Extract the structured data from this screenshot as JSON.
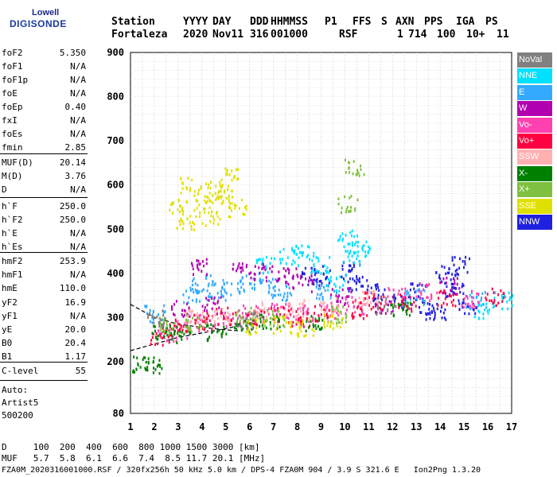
{
  "logo": {
    "line1": "Lowell",
    "line2": "DIGISONDE"
  },
  "header": {
    "labels": [
      "Station",
      "YYYY",
      "DAY",
      "DDD",
      "HHMMSS",
      "P1",
      "FFS",
      "S",
      "AXN",
      "PPS",
      "IGA",
      "PS"
    ],
    "values": [
      "Fortaleza",
      "2020",
      "Nov11",
      "316",
      "001000",
      "RSF",
      "",
      "1",
      "714",
      "100",
      "10+",
      "11"
    ]
  },
  "params_group1": [
    {
      "label": "foF2",
      "value": "5.350"
    },
    {
      "label": "foF1",
      "value": "N/A"
    },
    {
      "label": "foF1p",
      "value": "N/A"
    },
    {
      "label": "foE",
      "value": "N/A"
    },
    {
      "label": "foEp",
      "value": "0.40"
    },
    {
      "label": "fxI",
      "value": "N/A"
    },
    {
      "label": "foEs",
      "value": "N/A"
    },
    {
      "label": "fmin",
      "value": "2.85"
    }
  ],
  "params_group2": [
    {
      "label": "MUF(D)",
      "value": "20.14"
    },
    {
      "label": "M(D)",
      "value": "3.76"
    },
    {
      "label": "D",
      "value": "N/A"
    }
  ],
  "params_group3": [
    {
      "label": "h`F",
      "value": "250.0"
    },
    {
      "label": "h`F2",
      "value": "250.0"
    },
    {
      "label": "h`E",
      "value": "N/A"
    },
    {
      "label": "h`Es",
      "value": "N/A"
    }
  ],
  "params_group4": [
    {
      "label": "hmF2",
      "value": "253.9"
    },
    {
      "label": "hmF1",
      "value": "N/A"
    },
    {
      "label": "hmE",
      "value": "110.0"
    },
    {
      "label": "yF2",
      "value": "16.9"
    },
    {
      "label": "yF1",
      "value": "N/A"
    },
    {
      "label": "yE",
      "value": "20.0"
    },
    {
      "label": "B0",
      "value": "20.4"
    },
    {
      "label": "B1",
      "value": "1.17"
    }
  ],
  "clevel": {
    "label": "C-level",
    "value": "55"
  },
  "auto": {
    "line1": "Auto:",
    "line2": "Artist5",
    "line3": "500200"
  },
  "legend": [
    {
      "label": "NoVal",
      "color": "#808080"
    },
    {
      "label": "NNE",
      "color": "#00e0ff"
    },
    {
      "label": "E",
      "color": "#33aaff"
    },
    {
      "label": "W",
      "color": "#b000b0"
    },
    {
      "label": "Vo-",
      "color": "#ff40b0"
    },
    {
      "label": "Vo+",
      "color": "#ff0040"
    },
    {
      "label": "SSW",
      "color": "#ffb0b0"
    },
    {
      "label": "X-",
      "color": "#008000"
    },
    {
      "label": "X+",
      "color": "#80c040"
    },
    {
      "label": "SSE",
      "color": "#e0e000"
    },
    {
      "label": "NNW",
      "color": "#2020e0"
    }
  ],
  "bottom": {
    "d_row": "D     100  200  400  600  800 1000 1500 3000 [km]",
    "muf_row": "MUF   5.7  5.8  6.1  6.6  7.4  8.5 11.7 20.1 [MHz]",
    "footer": "FZA0M_2020316001000.RSF / 320fx256h 50 kHz 5.0 km / DPS-4 FZA0M 904 / 3.9 S 321.6 E   Ion2Png 1.3.20"
  },
  "chart_data": {
    "type": "scatter",
    "title": "",
    "xlabel": "",
    "ylabel": "",
    "x_ticks": [
      1,
      2,
      3,
      4,
      5,
      6,
      7,
      8,
      9,
      10,
      11,
      12,
      13,
      14,
      15,
      16,
      17
    ],
    "y_ticks": [
      80,
      200,
      300,
      400,
      500,
      600,
      700,
      800,
      900
    ],
    "xlim": [
      1,
      17
    ],
    "ylim": [
      80,
      900
    ],
    "grid": "dotted",
    "legend_placement": "right",
    "series": [
      {
        "name": "NNW",
        "color": "#2020e0",
        "points": [
          [
            10.2,
            410
          ],
          [
            10.5,
            380
          ],
          [
            9.0,
            400
          ],
          [
            13.1,
            360
          ],
          [
            13.5,
            330
          ],
          [
            14.2,
            400
          ],
          [
            14.6,
            360
          ],
          [
            15.1,
            330
          ],
          [
            11.3,
            360
          ],
          [
            8.6,
            395
          ],
          [
            12.4,
            340
          ],
          [
            13.8,
            310
          ],
          [
            14.9,
            420
          ]
        ]
      },
      {
        "name": "NNE",
        "color": "#00e0ff",
        "points": [
          [
            10.1,
            480
          ],
          [
            10.3,
            440
          ],
          [
            8.3,
            450
          ],
          [
            7.6,
            440
          ],
          [
            6.6,
            420
          ],
          [
            10.7,
            460
          ],
          [
            16.6,
            340
          ],
          [
            15.8,
            320
          ],
          [
            9.6,
            380
          ],
          [
            8.9,
            420
          ]
        ]
      },
      {
        "name": "E",
        "color": "#33aaff",
        "points": [
          [
            4.0,
            380
          ],
          [
            4.6,
            360
          ],
          [
            5.2,
            370
          ],
          [
            3.5,
            350
          ],
          [
            6.0,
            380
          ],
          [
            6.8,
            370
          ],
          [
            7.3,
            360
          ],
          [
            9.2,
            360
          ],
          [
            12.9,
            350
          ],
          [
            15.5,
            340
          ],
          [
            2.0,
            310
          ]
        ]
      },
      {
        "name": "W",
        "color": "#b000b0",
        "points": [
          [
            3.9,
            420
          ],
          [
            5.6,
            410
          ],
          [
            6.5,
            405
          ],
          [
            7.5,
            395
          ],
          [
            8.2,
            380
          ],
          [
            3.1,
            320
          ],
          [
            4.4,
            330
          ],
          [
            9.8,
            350
          ],
          [
            11.6,
            330
          ],
          [
            14.4,
            375
          ]
        ]
      },
      {
        "name": "Vo-",
        "color": "#ff40b0",
        "points": [
          [
            2.5,
            265
          ],
          [
            3.2,
            275
          ],
          [
            4.2,
            290
          ],
          [
            5.3,
            300
          ],
          [
            6.1,
            310
          ],
          [
            7.2,
            315
          ],
          [
            8.2,
            310
          ],
          [
            9.3,
            320
          ],
          [
            10.4,
            330
          ],
          [
            12.1,
            350
          ],
          [
            13.4,
            360
          ],
          [
            15.3,
            345
          ]
        ]
      },
      {
        "name": "Vo+",
        "color": "#ff0040",
        "points": [
          [
            2.2,
            260
          ],
          [
            3.0,
            280
          ],
          [
            4.0,
            295
          ],
          [
            5.0,
            305
          ],
          [
            6.2,
            300
          ],
          [
            7.3,
            310
          ],
          [
            8.1,
            300
          ],
          [
            9.1,
            310
          ],
          [
            10.6,
            320
          ],
          [
            11.2,
            340
          ],
          [
            12.6,
            335
          ],
          [
            14.3,
            345
          ],
          [
            16.3,
            350
          ]
        ]
      },
      {
        "name": "SSW",
        "color": "#ffb0b0",
        "points": [
          [
            3.6,
            300
          ],
          [
            4.8,
            305
          ],
          [
            6.4,
            320
          ],
          [
            7.9,
            325
          ],
          [
            9.4,
            330
          ],
          [
            10.9,
            345
          ]
        ]
      },
      {
        "name": "X-",
        "color": "#008000",
        "points": [
          [
            2.3,
            270
          ],
          [
            3.1,
            265
          ],
          [
            4.6,
            270
          ],
          [
            5.7,
            280
          ],
          [
            6.8,
            290
          ],
          [
            8.6,
            290
          ],
          [
            1.5,
            195
          ],
          [
            1.9,
            195
          ],
          [
            12.3,
            320
          ]
        ]
      },
      {
        "name": "X+",
        "color": "#80c040",
        "points": [
          [
            2.6,
            285
          ],
          [
            3.7,
            290
          ],
          [
            5.8,
            305
          ],
          [
            7.0,
            300
          ],
          [
            9.7,
            310
          ],
          [
            10.1,
            560
          ],
          [
            10.4,
            640
          ]
        ]
      },
      {
        "name": "SSE",
        "color": "#e0e000",
        "points": [
          [
            3.0,
            550
          ],
          [
            3.5,
            600
          ],
          [
            4.0,
            560
          ],
          [
            4.5,
            590
          ],
          [
            5.1,
            620
          ],
          [
            5.4,
            550
          ],
          [
            3.3,
            520
          ],
          [
            4.3,
            530
          ],
          [
            4.9,
            580
          ],
          [
            6.2,
            280
          ],
          [
            7.4,
            285
          ],
          [
            8.4,
            280
          ],
          [
            9.5,
            295
          ]
        ]
      },
      {
        "name": "NoVal",
        "color": "#808080",
        "points": [
          [
            2.1,
            300
          ],
          [
            5.9,
            295
          ],
          [
            11.7,
            330
          ]
        ]
      }
    ],
    "annotation_curves": [
      {
        "points": [
          [
            1.0,
            225
          ],
          [
            2.0,
            240
          ],
          [
            3.0,
            255
          ],
          [
            4.0,
            265
          ],
          [
            5.0,
            275
          ],
          [
            5.6,
            282
          ]
        ]
      },
      {
        "points": [
          [
            1.0,
            330
          ],
          [
            2.0,
            300
          ],
          [
            3.0,
            285
          ],
          [
            4.0,
            278
          ],
          [
            5.0,
            272
          ],
          [
            5.6,
            270
          ]
        ]
      }
    ]
  }
}
